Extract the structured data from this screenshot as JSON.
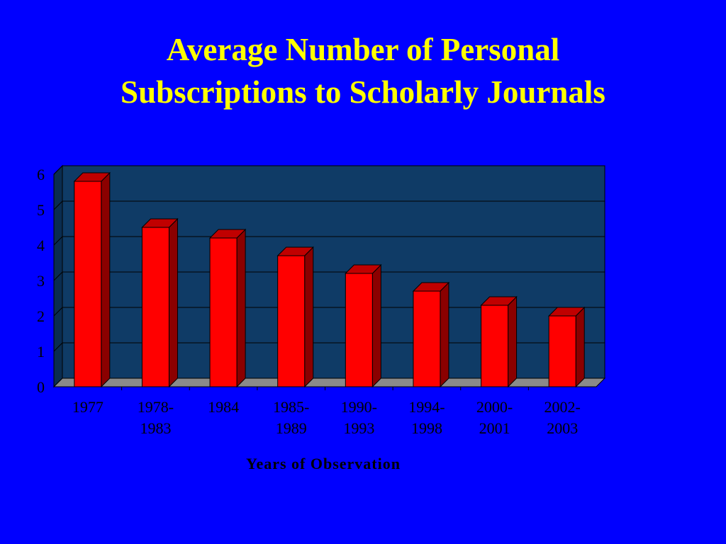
{
  "colors": {
    "background": "#0000ff",
    "title": "#ffff00",
    "plot_area": "#0f3b66",
    "bar_front": "#ff0000",
    "bar_side": "#8b0000",
    "bar_top": "#c00000",
    "floor": "#8a8a8a"
  },
  "chart_data": {
    "type": "bar",
    "title_lines": [
      "Average Number of Personal",
      "Subscriptions to Scholarly Journals"
    ],
    "categories": [
      [
        "1977"
      ],
      [
        "1978-",
        "1983"
      ],
      [
        "1984"
      ],
      [
        "1985-",
        "1989"
      ],
      [
        "1990-",
        "1993"
      ],
      [
        "1994-",
        "1998"
      ],
      [
        "2000-",
        "2001"
      ],
      [
        "2002-",
        "2003"
      ]
    ],
    "values": [
      5.8,
      4.5,
      4.2,
      3.7,
      3.2,
      2.7,
      2.3,
      2.0
    ],
    "xlabel": "Years of Observation",
    "ylabel": "",
    "ylim": [
      0,
      6
    ],
    "yticks": [
      "0",
      "1",
      "2",
      "3",
      "4",
      "5",
      "6"
    ],
    "grid": true,
    "style": "3d-bar"
  }
}
